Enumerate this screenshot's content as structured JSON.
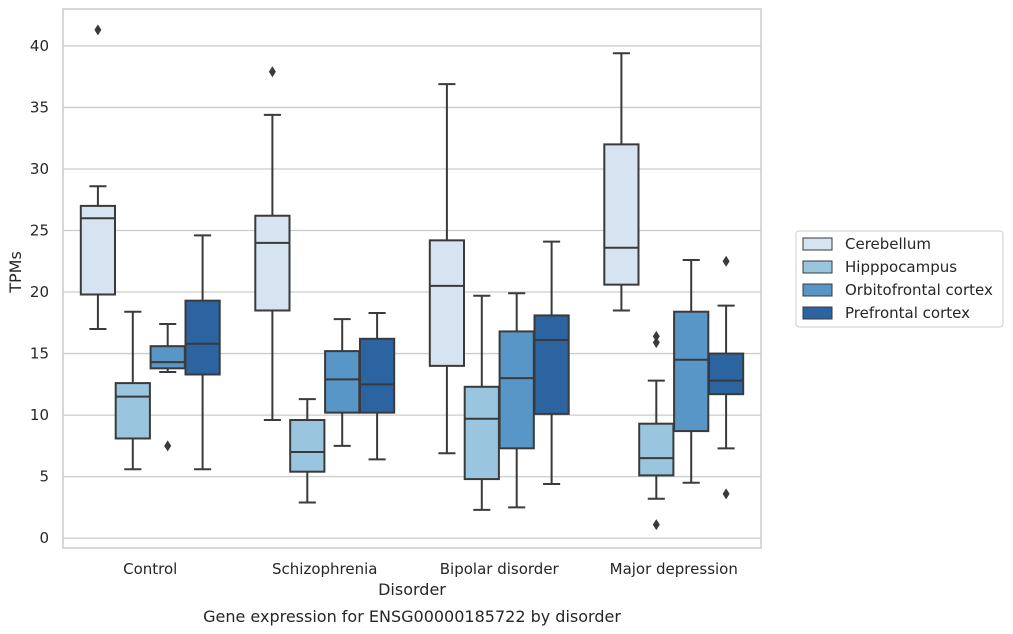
{
  "chart_data": {
    "type": "boxplot",
    "title": "Gene expression for ENSG00000185722 by disorder",
    "xlabel": "Disorder",
    "ylabel": "TPMs",
    "ylim": [
      -0.8,
      43
    ],
    "yticks": [
      0,
      5,
      10,
      15,
      20,
      25,
      30,
      35,
      40
    ],
    "grid": true,
    "legend_position": "right",
    "categories": [
      "Control",
      "Schizophrenia",
      "Bipolar disorder",
      "Major depression"
    ],
    "series": [
      {
        "name": "Cerebellum",
        "color": "#d6e3f1",
        "boxes": [
          {
            "whislo": 17.0,
            "q1": 19.8,
            "med": 26.0,
            "q3": 27.0,
            "whishi": 28.6,
            "fliers": [
              41.3
            ]
          },
          {
            "whislo": 9.6,
            "q1": 18.5,
            "med": 24.0,
            "q3": 26.2,
            "whishi": 34.4,
            "fliers": [
              37.9
            ]
          },
          {
            "whislo": 6.9,
            "q1": 14.0,
            "med": 20.5,
            "q3": 24.2,
            "whishi": 36.9,
            "fliers": []
          },
          {
            "whislo": 18.5,
            "q1": 20.6,
            "med": 23.6,
            "q3": 32.0,
            "whishi": 39.4,
            "fliers": []
          }
        ]
      },
      {
        "name": "Hipppocampus",
        "color": "#9ac5de",
        "boxes": [
          {
            "whislo": 5.6,
            "q1": 8.1,
            "med": 11.5,
            "q3": 12.6,
            "whishi": 18.4,
            "fliers": []
          },
          {
            "whislo": 2.9,
            "q1": 5.4,
            "med": 7.0,
            "q3": 9.6,
            "whishi": 11.3,
            "fliers": []
          },
          {
            "whislo": 2.3,
            "q1": 4.8,
            "med": 9.7,
            "q3": 12.3,
            "whishi": 19.7,
            "fliers": []
          },
          {
            "whislo": 3.2,
            "q1": 5.1,
            "med": 6.5,
            "q3": 9.3,
            "whishi": 12.8,
            "fliers": [
              1.1,
              15.9,
              16.4
            ]
          }
        ]
      },
      {
        "name": "Orbitofrontal cortex",
        "color": "#5796c6",
        "boxes": [
          {
            "whislo": 13.5,
            "q1": 13.8,
            "med": 14.3,
            "q3": 15.6,
            "whishi": 17.4,
            "fliers": [
              7.5
            ]
          },
          {
            "whislo": 7.5,
            "q1": 10.2,
            "med": 12.9,
            "q3": 15.2,
            "whishi": 17.8,
            "fliers": []
          },
          {
            "whislo": 2.5,
            "q1": 7.3,
            "med": 13.0,
            "q3": 16.8,
            "whishi": 19.9,
            "fliers": []
          },
          {
            "whislo": 4.5,
            "q1": 8.7,
            "med": 14.5,
            "q3": 18.4,
            "whishi": 22.6,
            "fliers": []
          }
        ]
      },
      {
        "name": "Prefrontal cortex",
        "color": "#2c64a2",
        "boxes": [
          {
            "whislo": 5.6,
            "q1": 13.3,
            "med": 15.8,
            "q3": 19.3,
            "whishi": 24.6,
            "fliers": []
          },
          {
            "whislo": 6.4,
            "q1": 10.2,
            "med": 12.5,
            "q3": 16.2,
            "whishi": 18.3,
            "fliers": []
          },
          {
            "whislo": 4.4,
            "q1": 10.1,
            "med": 16.1,
            "q3": 18.1,
            "whishi": 24.1,
            "fliers": []
          },
          {
            "whislo": 7.3,
            "q1": 11.7,
            "med": 12.8,
            "q3": 15.0,
            "whishi": 18.9,
            "fliers": [
              3.6,
              22.5
            ]
          }
        ]
      }
    ]
  }
}
